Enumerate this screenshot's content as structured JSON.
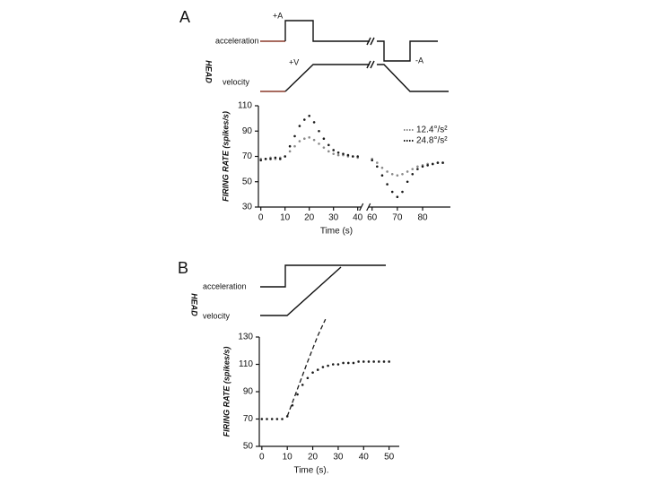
{
  "panels": [
    {
      "label": "A",
      "head": "HEAD",
      "acceleration": "acceleration",
      "velocity": "velocity",
      "annotations": [
        "+A",
        "+V",
        "-A"
      ]
    },
    {
      "label": "B",
      "head": "HEAD",
      "acceleration": "acceleration",
      "velocity": "velocity"
    }
  ],
  "chart_data": [
    {
      "type": "line",
      "x_label": "Time (s)",
      "y_label": "FIRING RATE (spikes/s)",
      "x": [
        0,
        2,
        4,
        6,
        8,
        10,
        12,
        14,
        16,
        18,
        20,
        22,
        24,
        26,
        28,
        30,
        32,
        34,
        36,
        38,
        40,
        60,
        62,
        64,
        66,
        68,
        70,
        72,
        74,
        76,
        78,
        80,
        82,
        84,
        86,
        88
      ],
      "x_break": [
        40,
        60
      ],
      "series": [
        {
          "name": "12.4°/s²",
          "color": "#8a8a8a",
          "style": "dotted",
          "values": [
            68,
            68,
            69,
            68,
            69,
            70,
            74,
            78,
            82,
            84,
            85,
            83,
            80,
            77,
            74,
            72,
            71,
            71,
            70,
            70,
            69,
            68,
            65,
            61,
            58,
            56,
            55,
            56,
            58,
            60,
            62,
            63,
            64,
            64,
            65,
            65
          ]
        },
        {
          "name": "24.8°/s²",
          "color": "#1a1a1a",
          "style": "dotted",
          "values": [
            67,
            68,
            68,
            69,
            68,
            70,
            78,
            86,
            94,
            99,
            102,
            97,
            90,
            84,
            79,
            75,
            73,
            72,
            71,
            70,
            70,
            67,
            62,
            55,
            48,
            42,
            38,
            42,
            50,
            56,
            60,
            62,
            63,
            64,
            65,
            65
          ]
        }
      ],
      "xlim": [
        -1,
        91
      ],
      "ylim": [
        30,
        110
      ],
      "xticks": [
        0,
        10,
        20,
        30,
        40,
        60,
        70,
        80
      ],
      "yticks": [
        30,
        50,
        70,
        90,
        110
      ],
      "legend": "upper right"
    },
    {
      "type": "line",
      "x_label": "Time (s).",
      "y_label": "FIRING RATE (spikes/s)",
      "series": [
        {
          "color": "#1a1a1a",
          "style": "dashed",
          "x": [
            10,
            14,
            18,
            22,
            25
          ],
          "values": [
            72,
            92,
            112,
            131,
            143
          ]
        },
        {
          "color": "#1a1a1a",
          "style": "dotted",
          "x": [
            0,
            2,
            4,
            6,
            8,
            10,
            12,
            14,
            16,
            18,
            20,
            22,
            24,
            26,
            28,
            30,
            32,
            34,
            36,
            38,
            40,
            42,
            44,
            46,
            48,
            50
          ],
          "values": [
            70,
            70,
            70,
            70,
            70,
            72,
            80,
            88,
            95,
            100,
            104,
            106,
            108,
            109,
            110,
            110,
            111,
            111,
            111,
            112,
            112,
            112,
            112,
            112,
            112,
            112
          ]
        }
      ],
      "xlim": [
        -1,
        54
      ],
      "ylim": [
        50,
        130
      ],
      "xticks": [
        0,
        10,
        20,
        30,
        40,
        50
      ],
      "yticks": [
        50,
        70,
        90,
        110,
        130
      ]
    }
  ]
}
